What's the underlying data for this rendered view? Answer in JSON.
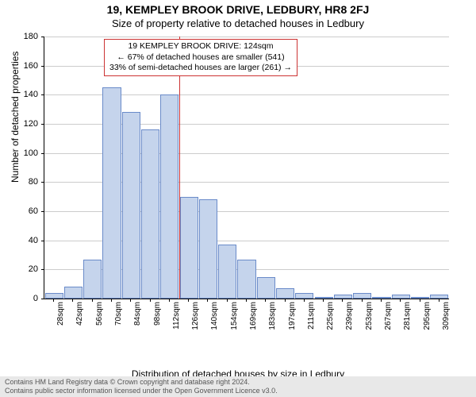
{
  "title": "19, KEMPLEY BROOK DRIVE, LEDBURY, HR8 2FJ",
  "subtitle": "Size of property relative to detached houses in Ledbury",
  "ylabel": "Number of detached properties",
  "xlabel": "Distribution of detached houses by size in Ledbury",
  "ylim": [
    0,
    180
  ],
  "ytick_step": 20,
  "bar_fill": "#c5d4ec",
  "bar_border": "#6a8bc9",
  "grid_color": "#cccccc",
  "refline_color": "#cc3333",
  "refline_x_index": 7,
  "annotation": {
    "line1": "19 KEMPLEY BROOK DRIVE: 124sqm",
    "line2": "← 67% of detached houses are smaller (541)",
    "line3": "33% of semi-detached houses are larger (261) →"
  },
  "categories": [
    "28sqm",
    "42sqm",
    "56sqm",
    "70sqm",
    "84sqm",
    "98sqm",
    "112sqm",
    "126sqm",
    "140sqm",
    "154sqm",
    "169sqm",
    "183sqm",
    "197sqm",
    "211sqm",
    "225sqm",
    "239sqm",
    "253sqm",
    "267sqm",
    "281sqm",
    "295sqm",
    "309sqm"
  ],
  "values": [
    4,
    8,
    27,
    145,
    128,
    116,
    140,
    70,
    68,
    37,
    27,
    15,
    7,
    4,
    0,
    3,
    4,
    0,
    3,
    0,
    3
  ],
  "footer": {
    "line1": "Contains HM Land Registry data © Crown copyright and database right 2024.",
    "line2": "Contains public sector information licensed under the Open Government Licence v3.0."
  }
}
